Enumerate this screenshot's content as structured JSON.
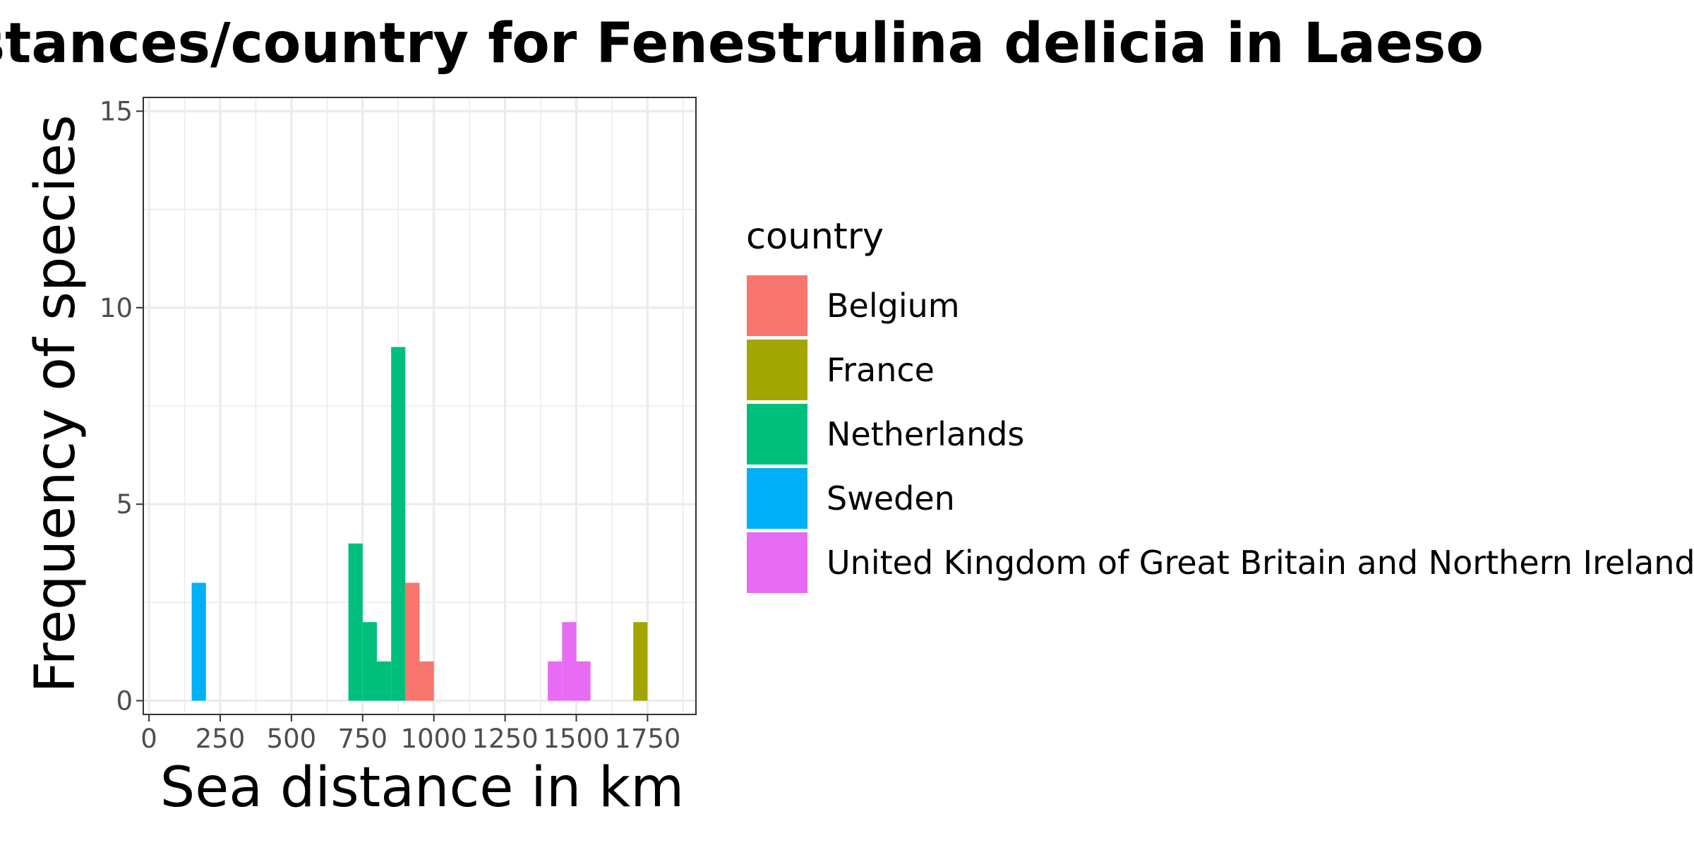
{
  "chart_data": {
    "type": "bar",
    "stacked": true,
    "title": "distances/country for Fenestrulina delicia in Laeso",
    "xlabel": "Sea distance in km",
    "ylabel": "Frequency of species",
    "xlim": [
      -20,
      1920
    ],
    "ylim": [
      -0.35,
      15.35
    ],
    "x_ticks": [
      0,
      250,
      500,
      750,
      1000,
      1250,
      1500,
      1750
    ],
    "y_ticks": [
      0,
      5,
      10,
      15
    ],
    "grid": true,
    "legend_title": "country",
    "legend_position": "right",
    "series": [
      {
        "name": "Belgium",
        "color": "#F8766D",
        "bins": [
          {
            "x0": 900,
            "x1": 950,
            "count": 3
          },
          {
            "x0": 950,
            "x1": 1000,
            "count": 1
          }
        ]
      },
      {
        "name": "France",
        "color": "#A3A500",
        "bins": [
          {
            "x0": 1700,
            "x1": 1750,
            "count": 2
          }
        ]
      },
      {
        "name": "Netherlands",
        "color": "#00BF7D",
        "bins": [
          {
            "x0": 700,
            "x1": 750,
            "count": 4
          },
          {
            "x0": 750,
            "x1": 800,
            "count": 2
          },
          {
            "x0": 800,
            "x1": 850,
            "count": 1
          },
          {
            "x0": 850,
            "x1": 900,
            "count": 9
          }
        ]
      },
      {
        "name": "Sweden",
        "color": "#00B0F6",
        "bins": [
          {
            "x0": 150,
            "x1": 200,
            "count": 3
          }
        ]
      },
      {
        "name": "United Kingdom of Great Britain and Northern Ireland",
        "color": "#E76BF3",
        "bins": [
          {
            "x0": 1400,
            "x1": 1450,
            "count": 1
          },
          {
            "x0": 1450,
            "x1": 1500,
            "count": 2
          },
          {
            "x0": 1500,
            "x1": 1550,
            "count": 1
          }
        ]
      }
    ]
  }
}
